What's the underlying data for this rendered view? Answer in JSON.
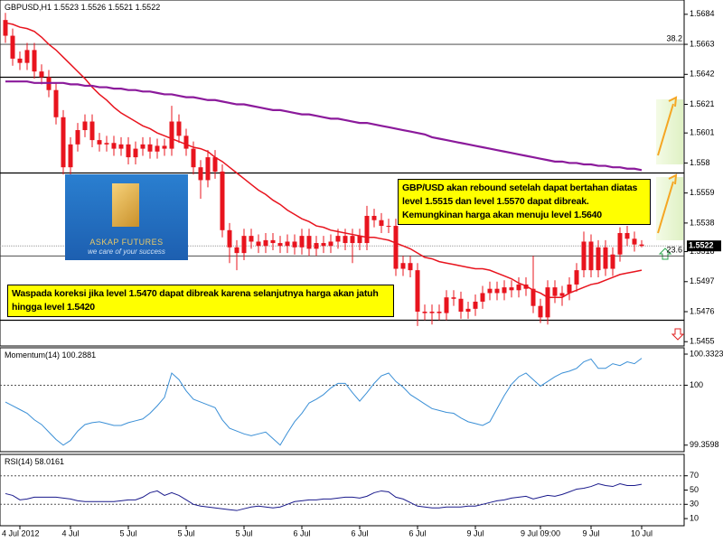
{
  "chart_data": [
    {
      "type": "candlestick",
      "title": "GBPUSD,H1",
      "last_ohlc": [
        1.5523,
        1.5526,
        1.5521,
        1.5522
      ],
      "last_price": 1.5522,
      "color": "#e8141e",
      "categories": [
        null,
        null,
        "4 Jul 2012",
        null,
        null,
        null,
        null,
        null,
        null,
        "4 Jul",
        null,
        null,
        null,
        null,
        null,
        null,
        null,
        "5 Jul",
        null,
        null,
        null,
        null,
        null,
        null,
        null,
        "5 Jul",
        null,
        null,
        null,
        null,
        null,
        null,
        null,
        "5 Jul",
        null,
        null,
        null,
        null,
        null,
        null,
        null,
        "6 Jul",
        null,
        null,
        null,
        null,
        null,
        null,
        null,
        "6 Jul",
        null,
        null,
        null,
        null,
        null,
        null,
        null,
        "6 Jul",
        null,
        null,
        null,
        null,
        null,
        null,
        null,
        "9 Jul",
        null,
        null,
        null,
        null,
        null,
        null,
        null,
        null,
        "9 Jul 09:00",
        null,
        null,
        null,
        null,
        null,
        null,
        "9 Jul",
        null,
        null,
        null,
        null,
        null,
        null,
        "10 Jul"
      ],
      "open": [
        1.568,
        1.5669,
        1.5653,
        1.565,
        1.5659,
        1.5644,
        1.564,
        1.5631,
        1.5612,
        1.5577,
        1.5593,
        1.5603,
        1.5609,
        1.5596,
        1.5593,
        1.5594,
        1.559,
        1.5593,
        1.5584,
        1.559,
        1.5593,
        1.5588,
        1.5592,
        1.559,
        1.5609,
        1.5599,
        1.559,
        1.5577,
        1.5568,
        1.5584,
        1.5574,
        1.5533,
        1.5521,
        1.5517,
        1.5529,
        1.5525,
        1.5522,
        1.5526,
        1.5524,
        1.5522,
        1.5525,
        1.5521,
        1.5529,
        1.552,
        1.5524,
        1.5522,
        1.5525,
        1.5529,
        1.5524,
        1.5529,
        1.5524,
        1.5543,
        1.554,
        1.5536,
        1.5536,
        1.5506,
        1.551,
        1.5505,
        1.5476,
        1.5475,
        1.5476,
        1.5475,
        1.5486,
        1.5485,
        1.5476,
        1.5478,
        1.5483,
        1.5489,
        1.5492,
        1.5489,
        1.5493,
        1.5491,
        1.5495,
        1.5492,
        1.548,
        1.5472,
        1.5493,
        1.5487,
        1.5489,
        1.5495,
        1.5505,
        1.5525,
        1.5505,
        1.5521,
        1.5506,
        1.5516,
        1.5531,
        1.5527,
        1.5523
      ],
      "high": [
        1.5685,
        1.5674,
        1.5658,
        1.5664,
        1.5664,
        1.5649,
        1.5645,
        1.5636,
        1.5617,
        1.5598,
        1.5608,
        1.5614,
        1.5614,
        1.5601,
        1.5599,
        1.5599,
        1.5598,
        1.5598,
        1.5595,
        1.5598,
        1.5598,
        1.5597,
        1.5597,
        1.562,
        1.5614,
        1.5604,
        1.5595,
        1.5582,
        1.5589,
        1.5589,
        1.5579,
        1.5538,
        1.5526,
        1.5534,
        1.5534,
        1.553,
        1.5531,
        1.5531,
        1.5529,
        1.553,
        1.553,
        1.5534,
        1.5534,
        1.5529,
        1.5529,
        1.553,
        1.5534,
        1.5534,
        1.5534,
        1.5534,
        1.555,
        1.5548,
        1.5545,
        1.5541,
        1.5541,
        1.5515,
        1.5515,
        1.551,
        1.5481,
        1.5481,
        1.5481,
        1.5491,
        1.5491,
        1.549,
        1.5483,
        1.5488,
        1.5494,
        1.5497,
        1.5497,
        1.5498,
        1.5498,
        1.55,
        1.55,
        1.5515,
        1.5485,
        1.5498,
        1.5498,
        1.5494,
        1.55,
        1.551,
        1.5532,
        1.553,
        1.5526,
        1.5526,
        1.5521,
        1.5535,
        1.5536,
        1.5532,
        1.5526
      ],
      "low": [
        1.5664,
        1.5648,
        1.5645,
        1.5645,
        1.5639,
        1.5635,
        1.5626,
        1.5607,
        1.5572,
        1.5572,
        1.5588,
        1.5598,
        1.5591,
        1.5588,
        1.5588,
        1.5585,
        1.5585,
        1.5579,
        1.5579,
        1.5585,
        1.5583,
        1.5583,
        1.5585,
        1.5585,
        1.5594,
        1.5585,
        1.5572,
        1.5555,
        1.5563,
        1.5569,
        1.5528,
        1.551,
        1.5505,
        1.5512,
        1.552,
        1.5517,
        1.5517,
        1.5519,
        1.5517,
        1.5517,
        1.5516,
        1.5516,
        1.5515,
        1.5515,
        1.5517,
        1.5517,
        1.552,
        1.5519,
        1.551,
        1.5519,
        1.5519,
        1.5535,
        1.5531,
        1.5531,
        1.5501,
        1.5501,
        1.55,
        1.5466,
        1.547,
        1.5467,
        1.547,
        1.547,
        1.548,
        1.5471,
        1.5471,
        1.5473,
        1.5478,
        1.5484,
        1.5484,
        1.5484,
        1.5486,
        1.5486,
        1.5487,
        1.5475,
        1.5468,
        1.5467,
        1.5482,
        1.548,
        1.5484,
        1.549,
        1.55,
        1.55,
        1.55,
        1.5501,
        1.5501,
        1.5511,
        1.5522,
        1.5518,
        1.5521
      ],
      "close": [
        1.5669,
        1.5653,
        1.565,
        1.5659,
        1.5644,
        1.564,
        1.5631,
        1.5612,
        1.5577,
        1.5593,
        1.5603,
        1.5609,
        1.5596,
        1.5593,
        1.5594,
        1.559,
        1.5593,
        1.5584,
        1.559,
        1.5593,
        1.5588,
        1.5592,
        1.559,
        1.5609,
        1.5599,
        1.559,
        1.5577,
        1.5568,
        1.5584,
        1.5574,
        1.5533,
        1.5521,
        1.5517,
        1.5529,
        1.5525,
        1.5522,
        1.5526,
        1.5524,
        1.5522,
        1.5525,
        1.5521,
        1.5529,
        1.552,
        1.5524,
        1.5522,
        1.5525,
        1.5529,
        1.5524,
        1.5529,
        1.5524,
        1.5543,
        1.554,
        1.5536,
        1.5536,
        1.5506,
        1.551,
        1.5505,
        1.5476,
        1.5475,
        1.5476,
        1.5475,
        1.5486,
        1.5485,
        1.5476,
        1.5478,
        1.5483,
        1.5489,
        1.5492,
        1.5489,
        1.5493,
        1.5491,
        1.5495,
        1.5492,
        1.548,
        1.5472,
        1.5493,
        1.5487,
        1.5489,
        1.5495,
        1.5505,
        1.5525,
        1.5505,
        1.5521,
        1.5506,
        1.5516,
        1.5531,
        1.5527,
        1.5523,
        1.5522
      ],
      "series": [
        {
          "color": "#e8141e",
          "values": [
            1.5678,
            1.5677,
            1.5675,
            1.5674,
            1.5672,
            1.5668,
            1.5663,
            1.5659,
            1.5654,
            1.5649,
            1.5644,
            1.5639,
            1.5633,
            1.5628,
            1.5624,
            1.5619,
            1.5615,
            1.5612,
            1.5609,
            1.5606,
            1.5604,
            1.5601,
            1.5599,
            1.5597,
            1.5595,
            1.5593,
            1.5591,
            1.559,
            1.5588,
            1.5584,
            1.5581,
            1.5577,
            1.5573,
            1.5569,
            1.5565,
            1.5561,
            1.5558,
            1.5554,
            1.5551,
            1.5547,
            1.5544,
            1.5541,
            1.5539,
            1.5536,
            1.5535,
            1.5533,
            1.5532,
            1.5531,
            1.553,
            1.5529,
            1.5528,
            1.5528,
            1.5527,
            1.5526,
            1.5524,
            1.5522,
            1.552,
            1.5517,
            1.5514,
            1.5513,
            1.5511,
            1.551,
            1.5509,
            1.5508,
            1.5507,
            1.5506,
            1.5506,
            1.5505,
            1.5503,
            1.5501,
            1.5499,
            1.5496,
            1.5494,
            1.5491,
            1.5489,
            1.5486,
            1.5486,
            1.5486,
            1.5489,
            1.5491,
            1.5493,
            1.5495,
            1.5496,
            1.5498,
            1.55,
            1.5502,
            1.5503,
            1.5504,
            1.5505
          ]
        },
        {
          "color": "#8b1a9b",
          "values": [
            1.5637,
            1.5637,
            1.5637,
            1.5637,
            1.5636,
            1.5636,
            1.5636,
            1.5636,
            1.5636,
            1.5635,
            1.5635,
            1.5634,
            1.5634,
            1.5633,
            1.5633,
            1.5632,
            1.5632,
            1.5631,
            1.5631,
            1.563,
            1.563,
            1.5629,
            1.5628,
            1.5628,
            1.5627,
            1.5626,
            1.5626,
            1.5625,
            1.5624,
            1.5624,
            1.5623,
            1.5622,
            1.5621,
            1.5621,
            1.562,
            1.5619,
            1.5618,
            1.5617,
            1.5617,
            1.5616,
            1.5615,
            1.5614,
            1.5614,
            1.5613,
            1.5612,
            1.5611,
            1.5611,
            1.561,
            1.5609,
            1.5608,
            1.5608,
            1.5607,
            1.5606,
            1.5605,
            1.5604,
            1.5603,
            1.5602,
            1.5601,
            1.56,
            1.5598,
            1.5597,
            1.5596,
            1.5595,
            1.5594,
            1.5593,
            1.5592,
            1.5591,
            1.559,
            1.5589,
            1.5588,
            1.5587,
            1.5586,
            1.5585,
            1.5584,
            1.5583,
            1.5582,
            1.5581,
            1.5581,
            1.558,
            1.558,
            1.5579,
            1.5579,
            1.5578,
            1.5578,
            1.5577,
            1.5577,
            1.5576,
            1.5576,
            1.5575
          ]
        }
      ],
      "ylim": [
        1.5452,
        1.5694
      ],
      "yticks": [
        1.5684,
        1.5663,
        1.5642,
        1.5621,
        1.5601,
        1.558,
        1.5559,
        1.5538,
        1.5518,
        1.5497,
        1.5476,
        1.5455
      ],
      "fib_levels": [
        {
          "value": 1.5663,
          "label": "38.2"
        },
        {
          "value": 1.5515,
          "label": "23.6"
        }
      ],
      "hlines": [
        1.564,
        1.5573,
        1.547
      ]
    },
    {
      "type": "line",
      "title": "Momentum(14)",
      "last_value": 100.2881,
      "color": "#3a8fd6",
      "values": [
        99.82,
        99.78,
        99.74,
        99.7,
        99.63,
        99.58,
        99.5,
        99.42,
        99.36,
        99.41,
        99.51,
        99.58,
        99.6,
        99.61,
        99.59,
        99.57,
        99.57,
        99.6,
        99.62,
        99.64,
        99.7,
        99.78,
        99.87,
        100.13,
        100.06,
        99.94,
        99.85,
        99.82,
        99.79,
        99.76,
        99.63,
        99.54,
        99.51,
        99.48,
        99.46,
        99.48,
        99.5,
        99.43,
        99.36,
        99.49,
        99.61,
        99.7,
        99.81,
        99.85,
        99.9,
        99.97,
        100.02,
        100.02,
        99.92,
        99.83,
        99.92,
        100.02,
        100.1,
        100.13,
        100.04,
        99.98,
        99.9,
        99.85,
        99.8,
        99.75,
        99.73,
        99.71,
        99.7,
        99.65,
        99.61,
        99.59,
        99.57,
        99.61,
        99.75,
        99.89,
        100.01,
        100.09,
        100.13,
        100.06,
        99.99,
        100.04,
        100.09,
        100.13,
        100.15,
        100.18,
        100.25,
        100.28,
        100.18,
        100.18,
        100.23,
        100.21,
        100.25,
        100.23,
        100.2881
      ],
      "ylim": [
        99.29,
        100.4
      ],
      "yticks": [
        100.3323,
        100,
        99.3598
      ],
      "levels": [
        100
      ]
    },
    {
      "type": "line",
      "title": "RSI(14)",
      "last_value": 58.0161,
      "color": "#1a1a8c",
      "values": [
        45,
        42.5,
        36.3,
        37.5,
        40,
        40,
        40,
        40,
        38.8,
        37.5,
        35,
        33.8,
        33.8,
        33.8,
        33.8,
        33.8,
        35,
        36.3,
        36.3,
        40,
        46.3,
        48.8,
        42.5,
        46.3,
        42.5,
        36.3,
        30,
        27.5,
        26.3,
        25,
        23.8,
        22.5,
        21.3,
        23.8,
        26.3,
        27.5,
        26.3,
        25,
        26.3,
        30,
        33.8,
        35,
        36.3,
        36.3,
        37.5,
        37.5,
        38.8,
        40,
        40,
        38.8,
        41.3,
        46.3,
        48.8,
        47.5,
        40,
        37.5,
        32.5,
        27.5,
        26.3,
        25,
        25,
        26.3,
        26.3,
        26.3,
        27.5,
        27.5,
        30,
        32.5,
        35,
        36.3,
        38.8,
        40,
        41.3,
        37.5,
        40,
        42.5,
        41.3,
        43.8,
        47.5,
        51.3,
        52.5,
        55,
        58.8,
        56.3,
        55,
        58.8,
        56.3,
        56.3,
        58.0161
      ],
      "ylim": [
        0,
        100
      ],
      "yticks": [
        70,
        50,
        30,
        10
      ],
      "levels": [
        70,
        30
      ]
    }
  ],
  "notes": [
    "GBP/USD akan rebound setelah dapat bertahan diatas level 1.5515 dan level 1.5570 dapat dibreak. Kemungkinan harga akan menuju level 1.5640",
    "Waspada koreksi jika level 1.5470 dapat dibreak karena selanjutnya harga akan jatuh hingga level 1.5420"
  ],
  "logo": {
    "name": "ASKAP FUTURES",
    "tagline": "we care of your success"
  }
}
